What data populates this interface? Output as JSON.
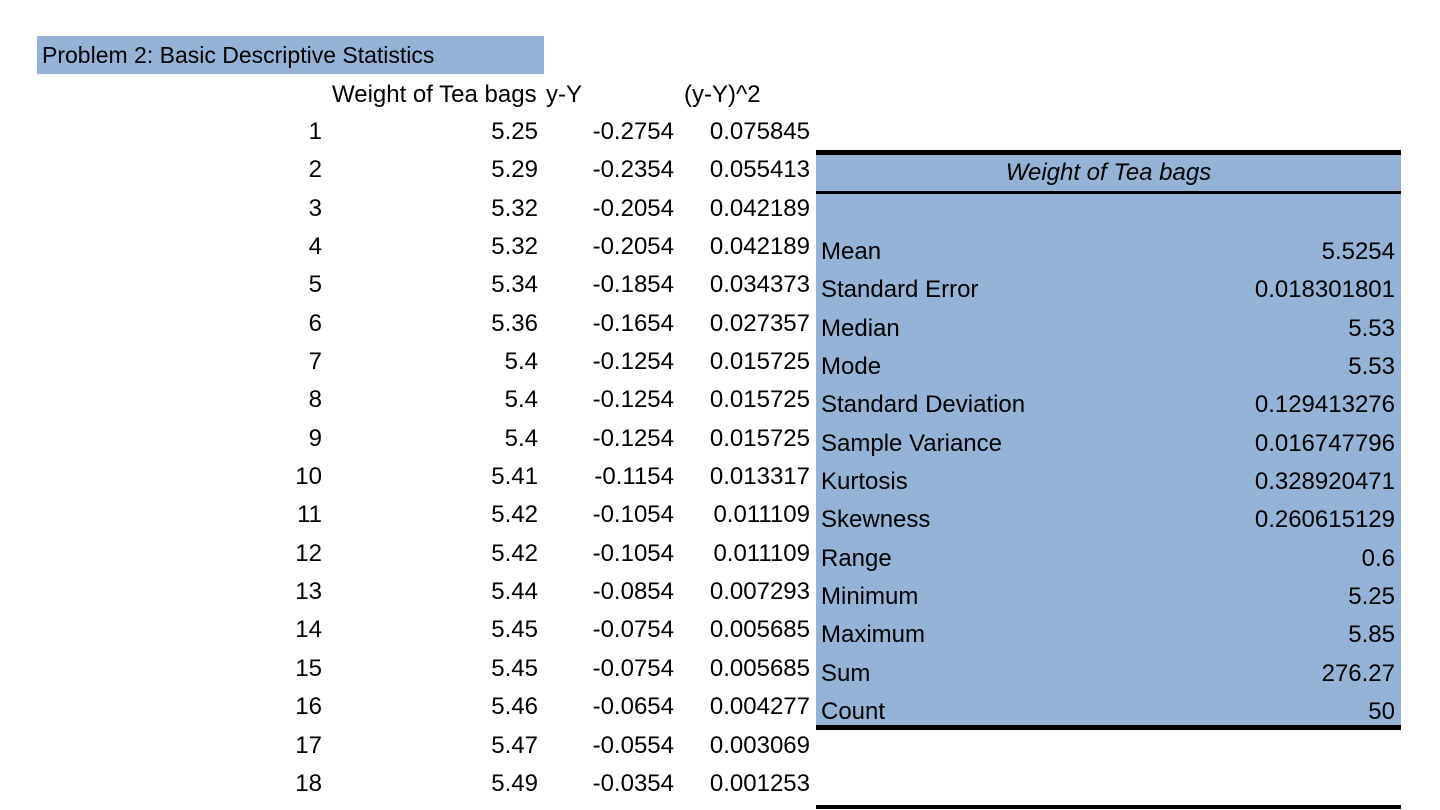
{
  "title": "Problem 2: Basic Descriptive Statistics",
  "headers": {
    "weight": "Weight of Tea bags",
    "deviation": "y-Y",
    "squared": "(y-Y)^2"
  },
  "rows": [
    {
      "idx": "1",
      "weight": "5.25",
      "dev": "-0.2754",
      "sq": "0.075845"
    },
    {
      "idx": "2",
      "weight": "5.29",
      "dev": "-0.2354",
      "sq": "0.055413"
    },
    {
      "idx": "3",
      "weight": "5.32",
      "dev": "-0.2054",
      "sq": "0.042189"
    },
    {
      "idx": "4",
      "weight": "5.32",
      "dev": "-0.2054",
      "sq": "0.042189"
    },
    {
      "idx": "5",
      "weight": "5.34",
      "dev": "-0.1854",
      "sq": "0.034373"
    },
    {
      "idx": "6",
      "weight": "5.36",
      "dev": "-0.1654",
      "sq": "0.027357"
    },
    {
      "idx": "7",
      "weight": "5.4",
      "dev": "-0.1254",
      "sq": "0.015725"
    },
    {
      "idx": "8",
      "weight": "5.4",
      "dev": "-0.1254",
      "sq": "0.015725"
    },
    {
      "idx": "9",
      "weight": "5.4",
      "dev": "-0.1254",
      "sq": "0.015725"
    },
    {
      "idx": "10",
      "weight": "5.41",
      "dev": "-0.1154",
      "sq": "0.013317"
    },
    {
      "idx": "11",
      "weight": "5.42",
      "dev": "-0.1054",
      "sq": "0.011109"
    },
    {
      "idx": "12",
      "weight": "5.42",
      "dev": "-0.1054",
      "sq": "0.011109"
    },
    {
      "idx": "13",
      "weight": "5.44",
      "dev": "-0.0854",
      "sq": "0.007293"
    },
    {
      "idx": "14",
      "weight": "5.45",
      "dev": "-0.0754",
      "sq": "0.005685"
    },
    {
      "idx": "15",
      "weight": "5.45",
      "dev": "-0.0754",
      "sq": "0.005685"
    },
    {
      "idx": "16",
      "weight": "5.46",
      "dev": "-0.0654",
      "sq": "0.004277"
    },
    {
      "idx": "17",
      "weight": "5.47",
      "dev": "-0.0554",
      "sq": "0.003069"
    },
    {
      "idx": "18",
      "weight": "5.49",
      "dev": "-0.0354",
      "sq": "0.001253"
    }
  ],
  "stats": {
    "heading": "Weight of Tea bags",
    "items": [
      {
        "label": "Mean",
        "value": "5.5254"
      },
      {
        "label": "Standard Error",
        "value": "0.018301801"
      },
      {
        "label": "Median",
        "value": "5.53"
      },
      {
        "label": "Mode",
        "value": "5.53"
      },
      {
        "label": "Standard Deviation",
        "value": "0.129413276"
      },
      {
        "label": "Sample Variance",
        "value": "0.016747796"
      },
      {
        "label": "Kurtosis",
        "value": "0.328920471"
      },
      {
        "label": "Skewness",
        "value": "0.260615129"
      },
      {
        "label": "Range",
        "value": "0.6"
      },
      {
        "label": "Minimum",
        "value": "5.25"
      },
      {
        "label": "Maximum",
        "value": "5.85"
      },
      {
        "label": "Sum",
        "value": "276.27"
      },
      {
        "label": "Count",
        "value": "50"
      }
    ]
  },
  "colors": {
    "highlight": "#95b3d7",
    "rule": "#000000"
  }
}
